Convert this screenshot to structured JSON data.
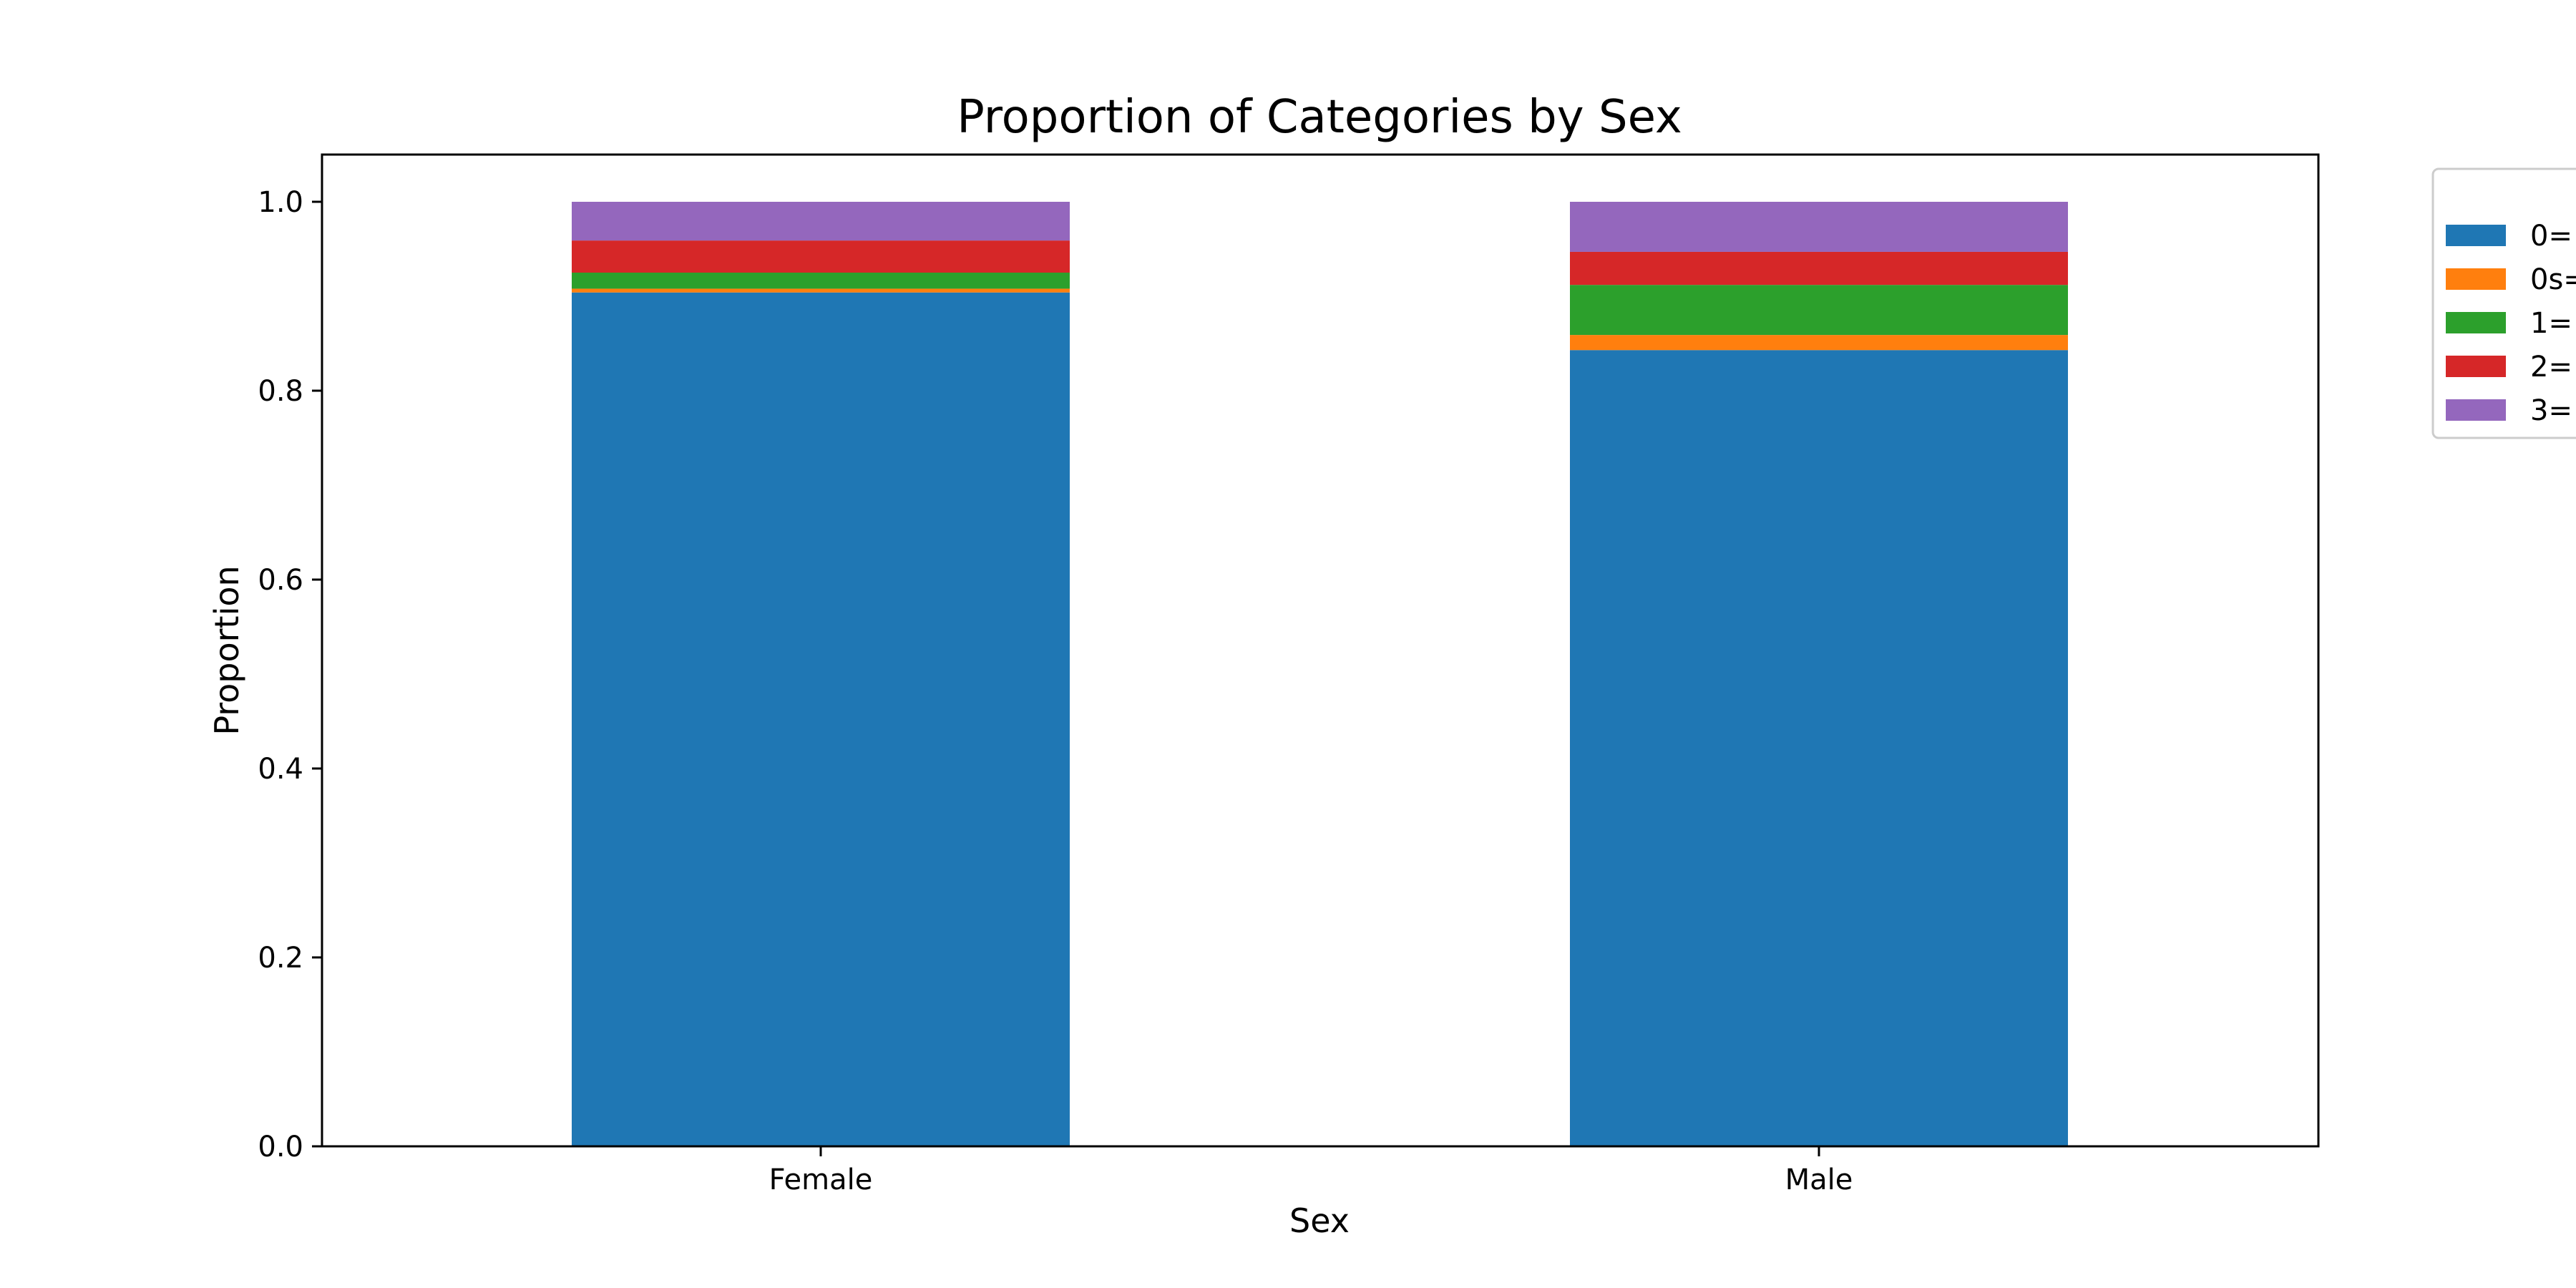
{
  "chart_data": {
    "type": "bar",
    "stacked": true,
    "title": "Proportion of Categories by Sex",
    "xlabel": "Sex",
    "ylabel": "Proportion",
    "categories": [
      "Female",
      "Male"
    ],
    "ylim": [
      0,
      1.05
    ],
    "yticks": [
      "0.0",
      "0.2",
      "0.4",
      "0.6",
      "0.8",
      "1.0"
    ],
    "ytick_values": [
      0,
      0.2,
      0.4,
      0.6,
      0.8,
      1.0
    ],
    "grid": false,
    "legend_position": "outside top-right (clipped)",
    "series": [
      {
        "name": "0=",
        "color": "#1f77b4",
        "values": [
          0.904,
          0.843
        ]
      },
      {
        "name": "0s=",
        "color": "#ff7f0e",
        "values": [
          0.004,
          0.016
        ]
      },
      {
        "name": "1=",
        "color": "#2ca02c",
        "values": [
          0.017,
          0.053
        ]
      },
      {
        "name": "2=",
        "color": "#d62728",
        "values": [
          0.034,
          0.035
        ]
      },
      {
        "name": "3=",
        "color": "#9467bd",
        "values": [
          0.041,
          0.053
        ]
      }
    ]
  }
}
